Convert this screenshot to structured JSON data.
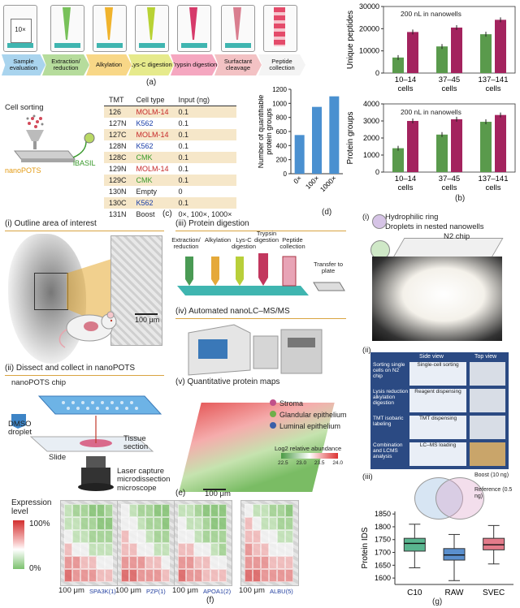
{
  "panel_a": {
    "tube_label": "10×",
    "steps": [
      "Sample evaluation",
      "Extraction/ reduction",
      "Alkylation",
      "Lys-C digestion",
      "Trypsin digestion",
      "Surfactant cleavage",
      "Peptide collection"
    ],
    "tag": "(a)"
  },
  "panel_b": {
    "tag": "(b)",
    "note": "200 nL in nanowells",
    "categories": [
      "10–14 cells",
      "37–45 cells",
      "137–141 cells"
    ],
    "top": {
      "ylabel": "Unique peptides",
      "yticks": [
        "0",
        "10000",
        "20000",
        "30000"
      ]
    },
    "bottom": {
      "ylabel": "Protein groups",
      "yticks": [
        "0",
        "1000",
        "2000",
        "3000",
        "4000"
      ]
    }
  },
  "panel_c": {
    "tag": "(c)",
    "cell_sorting": "Cell sorting",
    "nanopots": "nanoPOTS",
    "ibasil": "iBASIL",
    "headers": [
      "TMT",
      "Cell type",
      "Input (ng)"
    ],
    "rows": [
      [
        "126",
        "MOLM-14",
        "0.1"
      ],
      [
        "127N",
        "K562",
        "0.1"
      ],
      [
        "127C",
        "MOLM-14",
        "0.1"
      ],
      [
        "128N",
        "K562",
        "0.1"
      ],
      [
        "128C",
        "CMK",
        "0.1"
      ],
      [
        "129N",
        "MOLM-14",
        "0.1"
      ],
      [
        "129C",
        "CMK",
        "0.1"
      ],
      [
        "130N",
        "Empty",
        "0"
      ],
      [
        "130C",
        "K562",
        "0.1"
      ],
      [
        "131N",
        "Boost",
        "0×, 100×, 1000×"
      ]
    ]
  },
  "panel_d": {
    "tag": "(d)",
    "ylabel": "Number of quantifiable protein groups",
    "yticks": [
      "0",
      "200",
      "400",
      "600",
      "800",
      "1000",
      "1200"
    ]
  },
  "panel_e": {
    "tag": "(e)",
    "s1": "(i) Outline area of interest",
    "s2": "(ii) Dissect and collect in nanoPOTS",
    "s3": "(iii) Protein digestion",
    "s4": "(iv) Automated nanoLC–MS/MS",
    "s5": "(v) Quantitative protein maps",
    "scale1": "100 μm",
    "scale2": "100 μm",
    "chip": "nanoPOTS chip",
    "dmso": "DMSO droplet",
    "slide": "Slide",
    "tissue": "Tissue section",
    "laser": "Laser capture microdissection microscope",
    "steps": [
      "Extraction/ reduction",
      "Alkylation",
      "Lys-C digestion",
      "Trypsin digestion",
      "Peptide collection"
    ],
    "transfer": "Transfer to plate",
    "legend": [
      "Stroma",
      "Glandular epithelium",
      "Luminal epithelium"
    ],
    "legend_colors": [
      "#c0508a",
      "#6fae4a",
      "#3b5fa8"
    ],
    "cbar_title": "Log2 relative abundance",
    "cbar_ticks": [
      "22.5",
      "23.0",
      "23.5",
      "24.0"
    ]
  },
  "panel_f": {
    "tag": "(f)",
    "title": "Expression level",
    "t100": "100%",
    "t0": "0%",
    "scale": [
      "100 μm",
      "100 μm",
      "100 μm",
      "100 μm"
    ],
    "proteins": [
      "SPA3K(1)",
      "PZP(1)",
      "APOA1(2)",
      "ALBU(5)"
    ]
  },
  "panel_g": {
    "tag": "(g)",
    "i": "(i)",
    "ii": "(ii)",
    "iii": "(iii)",
    "ring": "Hydrophilic ring",
    "droplets": "Droplets in nested nanowells",
    "chip": "N2 chip",
    "side_view": "Side view",
    "top_view": "Top view",
    "rows": [
      {
        "label": "Sorting single cells on N2 chip",
        "side": "Single-cell sorting"
      },
      {
        "label": "Lysis reduction alkylation digestion",
        "side": "Reagent dispensing"
      },
      {
        "label": "TMT isobaric labeling",
        "side": "TMT dispensing"
      },
      {
        "label": "Combination and LCMS analysis",
        "side": "LC–MS loading"
      }
    ],
    "boost": "Boost (10 ng)",
    "reference": "Reference (0.5 ng)",
    "ylabel": "Protein IDS",
    "categories": [
      "C10",
      "RAW",
      "SVEC"
    ],
    "yticks": [
      "1600",
      "1650",
      "1700",
      "1750",
      "1800",
      "1850"
    ]
  },
  "chart_data": [
    {
      "type": "bar",
      "title": "200 nL in nanowells",
      "ylabel": "Unique peptides",
      "categories": [
        "10–14 cells",
        "37–45 cells",
        "137–141 cells"
      ],
      "ylim": [
        0,
        30000
      ],
      "series": [
        {
          "values": [
            7000,
            12000,
            17500
          ],
          "color": "#5a9a4c"
        },
        {
          "values": [
            18500,
            20500,
            24000
          ],
          "color": "#a3235e"
        }
      ]
    },
    {
      "type": "bar",
      "title": "200 nL in nanowells",
      "ylabel": "Protein groups",
      "categories": [
        "10–14 cells",
        "37–45 cells",
        "137–141 cells"
      ],
      "ylim": [
        0,
        4000
      ],
      "series": [
        {
          "values": [
            1400,
            2200,
            2950
          ],
          "color": "#5a9a4c"
        },
        {
          "values": [
            3000,
            3100,
            3350
          ],
          "color": "#a3235e"
        }
      ]
    },
    {
      "type": "bar",
      "ylabel": "Number of quantifiable protein groups",
      "categories": [
        "0×",
        "100×",
        "1000×"
      ],
      "values": [
        550,
        950,
        1100
      ],
      "ylim": [
        0,
        1200
      ],
      "color": "#4a90d0"
    },
    {
      "type": "box",
      "ylabel": "Protein IDS",
      "categories": [
        "C10",
        "RAW",
        "SVEC"
      ],
      "ylim": [
        1575,
        1860
      ],
      "boxes": [
        {
          "min": 1640,
          "q1": 1705,
          "median": 1735,
          "q3": 1755,
          "max": 1810,
          "color": "#59b58f"
        },
        {
          "min": 1590,
          "q1": 1670,
          "median": 1690,
          "q3": 1715,
          "max": 1770,
          "color": "#5a8fcd"
        },
        {
          "min": 1655,
          "q1": 1710,
          "median": 1730,
          "q3": 1755,
          "max": 1805,
          "color": "#e37b8a"
        }
      ]
    }
  ]
}
